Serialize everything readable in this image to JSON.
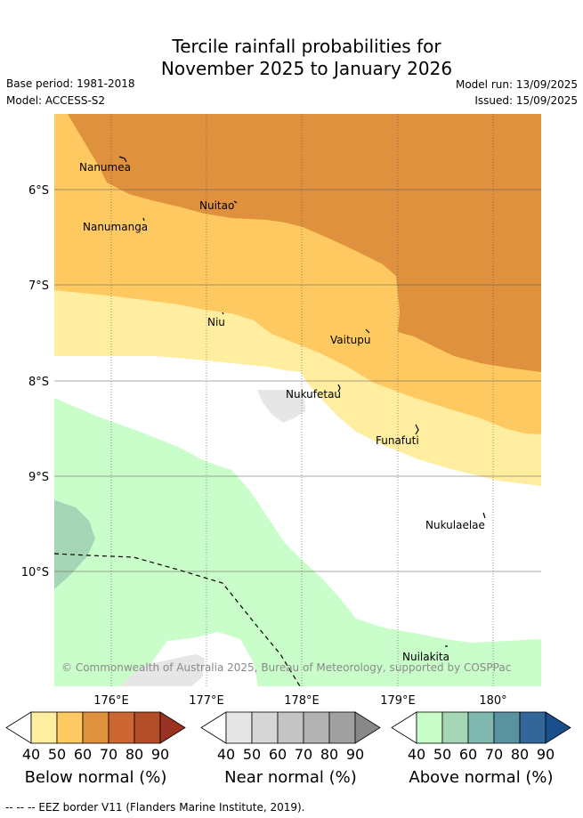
{
  "title_line1": "Tercile rainfall probabilities for",
  "title_line2": "November 2025 to January 2026",
  "base_period": "Base period: 1981-2018",
  "model": "Model: ACCESS-S2",
  "model_run": "Model run: 13/09/2025",
  "issued": "Issued: 15/09/2025",
  "copyright": "© Commonwealth of Australia 2025, Bureau of Meteorology, supported by COSPPac",
  "eez_note": "--  --  -- EEZ border V11 (Flanders Marine Institute, 2019).",
  "map": {
    "lon_ticks": [
      "176°E",
      "177°E",
      "178°E",
      "179°E",
      "180°"
    ],
    "lat_ticks": [
      "6°S",
      "7°S",
      "8°S",
      "9°S",
      "10°S"
    ],
    "places": [
      {
        "name": "Nanumea"
      },
      {
        "name": "Nuitao"
      },
      {
        "name": "Nanumanga"
      },
      {
        "name": "Niu"
      },
      {
        "name": "Vaitupu"
      },
      {
        "name": "Nukufetau"
      },
      {
        "name": "Funafuti"
      },
      {
        "name": "Nukulaelae"
      },
      {
        "name": "Nuilakita"
      }
    ]
  },
  "colorbars": [
    {
      "title": "Below normal (%)",
      "ticks": [
        "40",
        "50",
        "60",
        "70",
        "80",
        "90"
      ],
      "colors": [
        "#ffffff",
        "#ffeda0",
        "#fec961",
        "#e0913e",
        "#cc6633",
        "#b34d29",
        "#9b3322"
      ]
    },
    {
      "title": "Near normal (%)",
      "ticks": [
        "40",
        "50",
        "60",
        "70",
        "80",
        "90"
      ],
      "colors": [
        "#ffffff",
        "#e6e6e6",
        "#d6d6d6",
        "#c4c4c4",
        "#b3b3b3",
        "#a0a0a0",
        "#888888"
      ]
    },
    {
      "title": "Above normal (%)",
      "ticks": [
        "40",
        "50",
        "60",
        "70",
        "80",
        "90"
      ],
      "colors": [
        "#ffffff",
        "#c9fdc9",
        "#a4d6b6",
        "#80b8b0",
        "#5a93a0",
        "#336699",
        "#1b4f8c"
      ]
    }
  ],
  "fill_colors": {
    "below_50": "#ffeda0",
    "below_60": "#fec961",
    "below_70": "#e0913e",
    "near_50": "#e6e6e6",
    "above_50": "#c9fdc9",
    "above_60": "#a4d6b6"
  }
}
